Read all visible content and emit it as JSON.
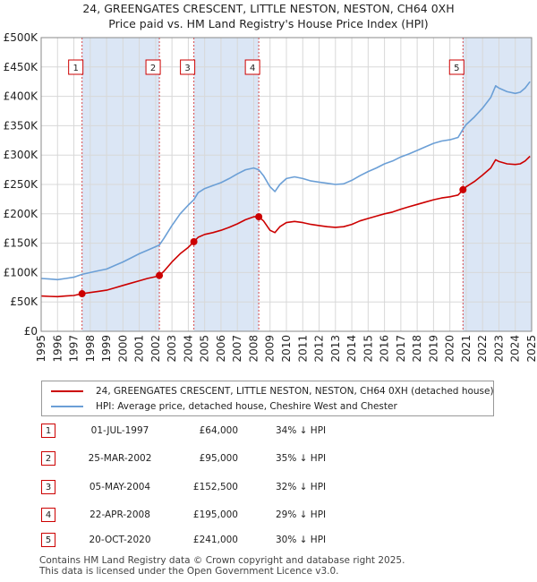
{
  "chart_data": {
    "type": "line",
    "title": "24, GREENGATES CRESCENT, LITTLE NESTON, NESTON, CH64 0XH",
    "subtitle": "Price paid vs. HM Land Registry's House Price Index (HPI)",
    "xlim": [
      1995,
      2025
    ],
    "ylim": [
      0,
      500000
    ],
    "x_ticks": [
      "1995",
      "1996",
      "1997",
      "1998",
      "1999",
      "2000",
      "2001",
      "2002",
      "2003",
      "2004",
      "2005",
      "2006",
      "2007",
      "2008",
      "2009",
      "2010",
      "2011",
      "2012",
      "2013",
      "2014",
      "2015",
      "2016",
      "2017",
      "2018",
      "2019",
      "2020",
      "2021",
      "2022",
      "2023",
      "2024",
      "2025"
    ],
    "y_ticks": [
      {
        "value": 0,
        "label": "£0"
      },
      {
        "value": 50000,
        "label": "£50K"
      },
      {
        "value": 100000,
        "label": "£100K"
      },
      {
        "value": 150000,
        "label": "£150K"
      },
      {
        "value": 200000,
        "label": "£200K"
      },
      {
        "value": 250000,
        "label": "£250K"
      },
      {
        "value": 300000,
        "label": "£300K"
      },
      {
        "value": 350000,
        "label": "£350K"
      },
      {
        "value": 400000,
        "label": "£400K"
      },
      {
        "value": 450000,
        "label": "£450K"
      },
      {
        "value": 500000,
        "label": "£500K"
      }
    ],
    "grid": true,
    "series": [
      {
        "name": "24, GREENGATES CRESCENT, LITTLE NESTON, NESTON, CH64 0XH (detached house)",
        "color": "#cc0000",
        "points": [
          [
            1995.0,
            60000
          ],
          [
            1995.5,
            59500
          ],
          [
            1996.0,
            59000
          ],
          [
            1996.5,
            60000
          ],
          [
            1997.0,
            61000
          ],
          [
            1997.5,
            64000
          ],
          [
            1998.0,
            66000
          ],
          [
            1998.5,
            68000
          ],
          [
            1999.0,
            70000
          ],
          [
            1999.5,
            74000
          ],
          [
            2000.0,
            78000
          ],
          [
            2000.5,
            82000
          ],
          [
            2001.0,
            86000
          ],
          [
            2001.5,
            90000
          ],
          [
            2002.0,
            93000
          ],
          [
            2002.23,
            95000
          ],
          [
            2002.5,
            102000
          ],
          [
            2003.0,
            118000
          ],
          [
            2003.5,
            132000
          ],
          [
            2004.0,
            143000
          ],
          [
            2004.34,
            152500
          ],
          [
            2004.6,
            160000
          ],
          [
            2005.0,
            165000
          ],
          [
            2005.5,
            168000
          ],
          [
            2006.0,
            172000
          ],
          [
            2006.5,
            177000
          ],
          [
            2007.0,
            183000
          ],
          [
            2007.5,
            190000
          ],
          [
            2008.0,
            195000
          ],
          [
            2008.31,
            195000
          ],
          [
            2008.6,
            188000
          ],
          [
            2009.0,
            172000
          ],
          [
            2009.3,
            168000
          ],
          [
            2009.6,
            178000
          ],
          [
            2010.0,
            185000
          ],
          [
            2010.5,
            187000
          ],
          [
            2011.0,
            185000
          ],
          [
            2011.5,
            182000
          ],
          [
            2012.0,
            180000
          ],
          [
            2012.5,
            178000
          ],
          [
            2013.0,
            177000
          ],
          [
            2013.5,
            178000
          ],
          [
            2014.0,
            182000
          ],
          [
            2014.5,
            188000
          ],
          [
            2015.0,
            192000
          ],
          [
            2015.5,
            196000
          ],
          [
            2016.0,
            200000
          ],
          [
            2016.5,
            203000
          ],
          [
            2017.0,
            208000
          ],
          [
            2017.5,
            212000
          ],
          [
            2018.0,
            216000
          ],
          [
            2018.5,
            220000
          ],
          [
            2019.0,
            224000
          ],
          [
            2019.5,
            227000
          ],
          [
            2020.0,
            229000
          ],
          [
            2020.5,
            232000
          ],
          [
            2020.8,
            241000
          ],
          [
            2021.0,
            246000
          ],
          [
            2021.5,
            255000
          ],
          [
            2022.0,
            266000
          ],
          [
            2022.5,
            278000
          ],
          [
            2022.8,
            292000
          ],
          [
            2023.0,
            289000
          ],
          [
            2023.5,
            285000
          ],
          [
            2024.0,
            284000
          ],
          [
            2024.3,
            285000
          ],
          [
            2024.6,
            290000
          ],
          [
            2024.9,
            298000
          ]
        ]
      },
      {
        "name": "HPI: Average price, detached house, Cheshire West and Chester",
        "color": "#6b9fd6",
        "points": [
          [
            1995.0,
            90000
          ],
          [
            1995.5,
            89000
          ],
          [
            1996.0,
            88000
          ],
          [
            1996.5,
            90000
          ],
          [
            1997.0,
            92000
          ],
          [
            1997.5,
            97000
          ],
          [
            1998.0,
            100000
          ],
          [
            1998.5,
            103000
          ],
          [
            1999.0,
            106000
          ],
          [
            1999.5,
            112000
          ],
          [
            2000.0,
            118000
          ],
          [
            2000.5,
            125000
          ],
          [
            2001.0,
            132000
          ],
          [
            2001.5,
            138000
          ],
          [
            2002.0,
            144000
          ],
          [
            2002.23,
            147000
          ],
          [
            2002.5,
            158000
          ],
          [
            2003.0,
            180000
          ],
          [
            2003.5,
            200000
          ],
          [
            2004.0,
            215000
          ],
          [
            2004.34,
            224000
          ],
          [
            2004.6,
            236000
          ],
          [
            2005.0,
            243000
          ],
          [
            2005.5,
            248000
          ],
          [
            2006.0,
            253000
          ],
          [
            2006.5,
            260000
          ],
          [
            2007.0,
            268000
          ],
          [
            2007.5,
            275000
          ],
          [
            2008.0,
            278000
          ],
          [
            2008.31,
            275000
          ],
          [
            2008.6,
            265000
          ],
          [
            2009.0,
            246000
          ],
          [
            2009.3,
            238000
          ],
          [
            2009.6,
            250000
          ],
          [
            2010.0,
            260000
          ],
          [
            2010.5,
            263000
          ],
          [
            2011.0,
            260000
          ],
          [
            2011.5,
            256000
          ],
          [
            2012.0,
            254000
          ],
          [
            2012.5,
            252000
          ],
          [
            2013.0,
            250000
          ],
          [
            2013.5,
            251000
          ],
          [
            2014.0,
            257000
          ],
          [
            2014.5,
            265000
          ],
          [
            2015.0,
            272000
          ],
          [
            2015.5,
            278000
          ],
          [
            2016.0,
            285000
          ],
          [
            2016.5,
            290000
          ],
          [
            2017.0,
            297000
          ],
          [
            2017.5,
            302000
          ],
          [
            2018.0,
            308000
          ],
          [
            2018.5,
            314000
          ],
          [
            2019.0,
            320000
          ],
          [
            2019.5,
            324000
          ],
          [
            2020.0,
            326000
          ],
          [
            2020.5,
            330000
          ],
          [
            2020.8,
            344000
          ],
          [
            2021.0,
            352000
          ],
          [
            2021.5,
            365000
          ],
          [
            2022.0,
            380000
          ],
          [
            2022.5,
            398000
          ],
          [
            2022.8,
            418000
          ],
          [
            2023.0,
            414000
          ],
          [
            2023.5,
            408000
          ],
          [
            2024.0,
            405000
          ],
          [
            2024.3,
            407000
          ],
          [
            2024.6,
            414000
          ],
          [
            2024.9,
            425000
          ]
        ]
      }
    ],
    "sales": [
      {
        "num": "1",
        "x": 1997.5,
        "price": 64000,
        "date": "01-JUL-1997",
        "price_label": "£64,000",
        "hpi": "34% ↓ HPI"
      },
      {
        "num": "2",
        "x": 2002.23,
        "price": 95000,
        "date": "25-MAR-2002",
        "price_label": "£95,000",
        "hpi": "35% ↓ HPI"
      },
      {
        "num": "3",
        "x": 2004.34,
        "price": 152500,
        "date": "05-MAY-2004",
        "price_label": "£152,500",
        "hpi": "32% ↓ HPI"
      },
      {
        "num": "4",
        "x": 2008.31,
        "price": 195000,
        "date": "22-APR-2008",
        "price_label": "£195,000",
        "hpi": "29% ↓ HPI"
      },
      {
        "num": "5",
        "x": 2020.8,
        "price": 241000,
        "date": "20-OCT-2020",
        "price_label": "£241,000",
        "hpi": "30% ↓ HPI"
      }
    ],
    "marker_color": "#cc0000",
    "shade_color": "#dbe6f5",
    "legend_placement": "below"
  },
  "footer": {
    "line1": "Contains HM Land Registry data © Crown copyright and database right 2025.",
    "line2": "This data is licensed under the Open Government Licence v3.0."
  }
}
